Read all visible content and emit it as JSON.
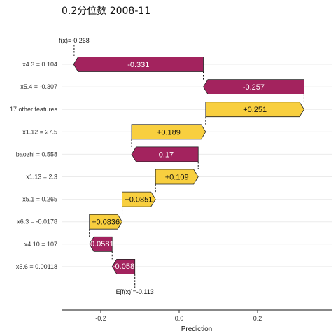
{
  "title": "0.2分位数 2008-11",
  "chart_data": {
    "type": "waterfall",
    "xlabel": "Prediction",
    "xticks": [
      -0.2,
      0.0,
      0.2
    ],
    "xtick_labels": [
      "-0.2",
      "0.0",
      "0.2"
    ],
    "xlim": [
      -0.3,
      0.4
    ],
    "fx": -0.268,
    "fx_label": "f(x)=-0.268",
    "base": -0.113,
    "base_label": "E[f(x)]=-0.113",
    "colors": {
      "positive": "#f8cf3f",
      "negative": "#a3235e"
    },
    "features": [
      {
        "label": "x4.3 = 0.104",
        "value": -0.331,
        "text": "-0.331"
      },
      {
        "label": "x5.4 = -0.307",
        "value": -0.257,
        "text": "-0.257"
      },
      {
        "label": "17 other features",
        "value": 0.251,
        "text": "+0.251"
      },
      {
        "label": "x1.12 = 27.5",
        "value": 0.189,
        "text": "+0.189"
      },
      {
        "label": "baozhi = 0.558",
        "value": -0.17,
        "text": "-0.17"
      },
      {
        "label": "x1.13 = 2.3",
        "value": 0.109,
        "text": "+0.109"
      },
      {
        "label": "x5.1 = 0.265",
        "value": 0.0851,
        "text": "+0.0851"
      },
      {
        "label": "x6.3 = -0.0178",
        "value": 0.0836,
        "text": "+0.0836"
      },
      {
        "label": "x4.10 = 107",
        "value": -0.0581,
        "text": "-0.0581"
      },
      {
        "label": "x5.6 = 0.00118",
        "value": -0.058,
        "text": "-0.058"
      }
    ]
  }
}
